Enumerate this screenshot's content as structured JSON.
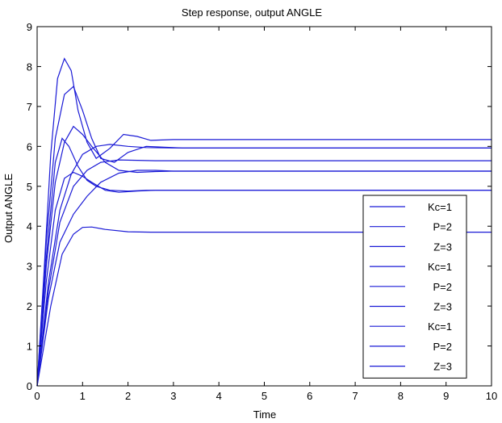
{
  "chart_data": {
    "type": "line",
    "title": "Step response, output ANGLE",
    "xlabel": "Time",
    "ylabel": "Output ANGLE",
    "xlim": [
      0,
      10
    ],
    "ylim": [
      0,
      9
    ],
    "xticks": [
      "0",
      "1",
      "2",
      "3",
      "4",
      "5",
      "6",
      "7",
      "8",
      "9",
      "10"
    ],
    "yticks": [
      "0",
      "1",
      "2",
      "3",
      "4",
      "5",
      "6",
      "7",
      "8",
      "9"
    ],
    "grid": false,
    "legend_position": "bottom-right",
    "line_color": "#1a1ad6",
    "series": [
      {
        "name": "Kc=1",
        "x": [
          0,
          0.3,
          0.55,
          0.8,
          1.0,
          1.2,
          1.5,
          2.0,
          2.5,
          3.0,
          10
        ],
        "y": [
          0,
          2.0,
          3.3,
          3.8,
          3.97,
          3.98,
          3.92,
          3.86,
          3.85,
          3.85,
          3.85
        ]
      },
      {
        "name": "P=2",
        "x": [
          0,
          0.25,
          0.5,
          0.8,
          1.1,
          1.4,
          1.8,
          2.2,
          2.6,
          3.0,
          10
        ],
        "y": [
          0,
          2.2,
          3.6,
          4.3,
          4.75,
          5.1,
          5.33,
          5.4,
          5.4,
          5.38,
          5.38
        ]
      },
      {
        "name": "Z=3",
        "x": [
          0,
          0.25,
          0.5,
          0.8,
          1.1,
          1.4,
          1.8,
          2.2,
          2.6,
          3.0,
          10
        ],
        "y": [
          0,
          2.4,
          4.1,
          5.0,
          5.4,
          5.6,
          5.66,
          5.65,
          5.64,
          5.64,
          5.64
        ]
      },
      {
        "name": "Kc=1",
        "x": [
          0,
          0.25,
          0.5,
          0.75,
          1.0,
          1.3,
          1.6,
          2.0,
          2.4,
          3.0,
          10
        ],
        "y": [
          0,
          2.6,
          4.4,
          5.3,
          5.8,
          6.0,
          6.05,
          6.0,
          5.97,
          5.96,
          5.96
        ]
      },
      {
        "name": "P=2",
        "x": [
          0,
          0.2,
          0.4,
          0.6,
          0.8,
          1.0,
          1.2,
          1.5,
          1.8,
          2.2,
          2.6,
          3.0,
          10
        ],
        "y": [
          0,
          2.6,
          4.4,
          5.2,
          5.35,
          5.25,
          5.1,
          4.9,
          4.85,
          4.88,
          4.9,
          4.9,
          4.9
        ]
      },
      {
        "name": "Z=3",
        "x": [
          0,
          0.2,
          0.4,
          0.6,
          0.8,
          1.0,
          1.2,
          1.5,
          1.8,
          2.2,
          2.6,
          3.0,
          10
        ],
        "y": [
          0,
          3.0,
          5.1,
          6.1,
          6.5,
          6.3,
          6.0,
          5.6,
          5.4,
          5.35,
          5.37,
          5.38,
          5.38
        ]
      },
      {
        "name": "Kc=1",
        "x": [
          0,
          0.2,
          0.4,
          0.55,
          0.7,
          0.9,
          1.1,
          1.3,
          1.6,
          2.0,
          2.4,
          3.0,
          10
        ],
        "y": [
          0,
          3.2,
          5.6,
          6.2,
          6.0,
          5.5,
          5.15,
          5.0,
          4.9,
          4.88,
          4.9,
          4.9,
          4.9
        ]
      },
      {
        "name": "P=2",
        "x": [
          0,
          0.2,
          0.4,
          0.6,
          0.8,
          1.0,
          1.2,
          1.4,
          1.7,
          2.0,
          2.4,
          2.8,
          3.2,
          10
        ],
        "y": [
          0,
          3.6,
          6.2,
          7.3,
          7.5,
          6.9,
          6.2,
          5.7,
          5.6,
          5.85,
          6.0,
          5.98,
          5.96,
          5.96
        ]
      },
      {
        "name": "Z=3",
        "x": [
          0,
          0.15,
          0.3,
          0.45,
          0.6,
          0.75,
          0.9,
          1.1,
          1.3,
          1.6,
          1.9,
          2.2,
          2.5,
          3.0,
          3.5,
          10
        ],
        "y": [
          0,
          2.8,
          5.8,
          7.7,
          8.2,
          7.9,
          6.9,
          6.1,
          5.7,
          5.95,
          6.3,
          6.25,
          6.15,
          6.17,
          6.17,
          6.17
        ]
      }
    ]
  }
}
